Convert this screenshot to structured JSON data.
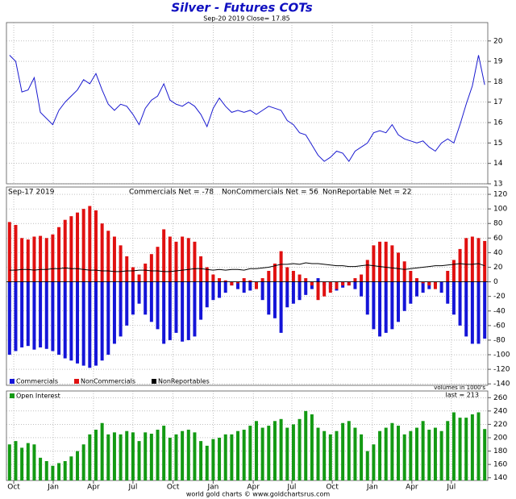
{
  "chart_data": [
    {
      "type": "line",
      "title": "Silver - Futures COTs",
      "subtitle": "Sep-20 2019   Close= 17.85",
      "color": "#1a1ad0",
      "values": [
        19.3,
        19.0,
        17.5,
        17.6,
        18.2,
        16.5,
        16.2,
        15.9,
        16.6,
        17.0,
        17.3,
        17.6,
        18.1,
        17.9,
        18.4,
        17.6,
        16.9,
        16.6,
        16.9,
        16.8,
        16.4,
        15.9,
        16.7,
        17.1,
        17.3,
        17.9,
        17.1,
        16.9,
        16.8,
        17.0,
        16.8,
        16.4,
        15.8,
        16.7,
        17.2,
        16.8,
        16.5,
        16.6,
        16.5,
        16.6,
        16.4,
        16.6,
        16.8,
        16.7,
        16.6,
        16.1,
        15.9,
        15.5,
        15.4,
        14.9,
        14.4,
        14.1,
        14.3,
        14.6,
        14.5,
        14.1,
        14.6,
        14.8,
        15.0,
        15.5,
        15.6,
        15.5,
        15.9,
        15.4,
        15.2,
        15.1,
        15.0,
        15.1,
        14.8,
        14.6,
        15.0,
        15.2,
        15.0,
        15.9,
        16.9,
        17.8,
        19.3,
        17.85
      ],
      "ylim": [
        13,
        20.9
      ],
      "yticks": [
        13,
        14,
        15,
        16,
        17,
        18,
        19,
        20
      ],
      "grid": true
    },
    {
      "type": "bar",
      "date_label": "Sep-17 2019",
      "annotations": [
        "Commercials Net = -78",
        "NonCommercials Net = 56",
        "NonReportable Net = 22"
      ],
      "note": "volumes in 1000's",
      "legend": "lower left",
      "series": [
        {
          "name": "Commercials",
          "color": "#1414d8",
          "values": [
            -100,
            -95,
            -90,
            -88,
            -93,
            -90,
            -92,
            -95,
            -100,
            -105,
            -108,
            -112,
            -115,
            -118,
            -115,
            -108,
            -100,
            -85,
            -75,
            -60,
            -45,
            -30,
            -45,
            -55,
            -65,
            -85,
            -80,
            -70,
            -82,
            -80,
            -75,
            -52,
            -35,
            -25,
            -22,
            -15,
            -5,
            -10,
            -15,
            -12,
            -8,
            -25,
            -45,
            -50,
            -70,
            -35,
            -30,
            -25,
            -18,
            -10,
            5,
            -5,
            -10,
            -12,
            -8,
            -5,
            -10,
            -20,
            -45,
            -65,
            -75,
            -70,
            -65,
            -55,
            -40,
            -30,
            -20,
            -15,
            -10,
            -5,
            -15,
            -30,
            -45,
            -60,
            -75,
            -85,
            -85,
            -78
          ]
        },
        {
          "name": "NonCommercials",
          "color": "#e01010",
          "values": [
            82,
            78,
            60,
            58,
            62,
            63,
            60,
            65,
            75,
            85,
            90,
            95,
            100,
            104,
            98,
            80,
            70,
            62,
            50,
            35,
            20,
            10,
            25,
            38,
            48,
            72,
            62,
            55,
            62,
            60,
            55,
            35,
            20,
            10,
            5,
            2,
            -5,
            -2,
            5,
            2,
            -10,
            5,
            15,
            25,
            42,
            20,
            15,
            10,
            5,
            -5,
            -25,
            -20,
            -15,
            -10,
            -5,
            -5,
            5,
            10,
            30,
            50,
            55,
            55,
            50,
            40,
            28,
            15,
            5,
            -2,
            -5,
            -10,
            0,
            15,
            30,
            45,
            60,
            62,
            60,
            56
          ]
        },
        {
          "name": "NonReportables",
          "color": "#000000",
          "type": "line",
          "values": [
            16,
            16,
            17,
            17,
            16,
            17,
            17,
            18,
            18,
            19,
            18,
            18,
            17,
            16,
            16,
            15,
            15,
            14,
            14,
            15,
            15,
            16,
            16,
            15,
            15,
            14,
            14,
            15,
            16,
            17,
            18,
            18,
            17,
            16,
            17,
            16,
            17,
            17,
            16,
            18,
            18,
            19,
            20,
            22,
            24,
            24,
            25,
            24,
            26,
            25,
            25,
            24,
            23,
            22,
            22,
            21,
            21,
            22,
            23,
            22,
            21,
            20,
            19,
            18,
            17,
            18,
            19,
            20,
            21,
            22,
            22,
            23,
            24,
            25,
            24,
            24,
            25,
            22
          ]
        }
      ],
      "ylim": [
        -142,
        130
      ],
      "yticks": [
        120,
        100,
        80,
        60,
        40,
        20,
        0,
        -20,
        -40,
        -60,
        -80,
        -100,
        -120,
        -140
      ],
      "grid": true
    },
    {
      "type": "bar",
      "annotation": "last = 213",
      "legend": "upper left",
      "footer": "world gold charts © www.goldchartsrus.com",
      "series": [
        {
          "name": "Open Interest",
          "color": "#139a13",
          "values": [
            190,
            195,
            185,
            192,
            190,
            170,
            165,
            158,
            162,
            165,
            172,
            180,
            190,
            205,
            212,
            222,
            205,
            208,
            205,
            210,
            208,
            195,
            208,
            206,
            212,
            218,
            200,
            205,
            210,
            212,
            208,
            195,
            188,
            198,
            200,
            205,
            205,
            210,
            212,
            218,
            225,
            215,
            218,
            225,
            228,
            215,
            220,
            228,
            240,
            235,
            215,
            210,
            205,
            210,
            222,
            225,
            215,
            205,
            180,
            190,
            210,
            215,
            222,
            218,
            205,
            210,
            215,
            225,
            212,
            215,
            210,
            225,
            238,
            230,
            230,
            235,
            238,
            213
          ]
        }
      ],
      "ylim": [
        136,
        270
      ],
      "yticks": [
        140,
        160,
        180,
        200,
        220,
        240,
        260
      ],
      "grid": true,
      "xlim": [
        -0.5,
        77.5
      ],
      "xticks": [
        {
          "value": 0.68,
          "label": "Oct"
        },
        {
          "value": 7.08,
          "label": "Jan"
        },
        {
          "value": 13.6,
          "label": "Apr"
        },
        {
          "value": 20.0,
          "label": "Jul"
        },
        {
          "value": 26.5,
          "label": "Oct"
        },
        {
          "value": 33.0,
          "label": "Jan"
        },
        {
          "value": 39.5,
          "label": "Apr"
        },
        {
          "value": 45.75,
          "label": "Jul"
        },
        {
          "value": 52.3,
          "label": "Oct"
        },
        {
          "value": 58.8,
          "label": "Jan"
        },
        {
          "value": 65.2,
          "label": "Apr"
        },
        {
          "value": 71.6,
          "label": "Jul"
        }
      ]
    }
  ]
}
